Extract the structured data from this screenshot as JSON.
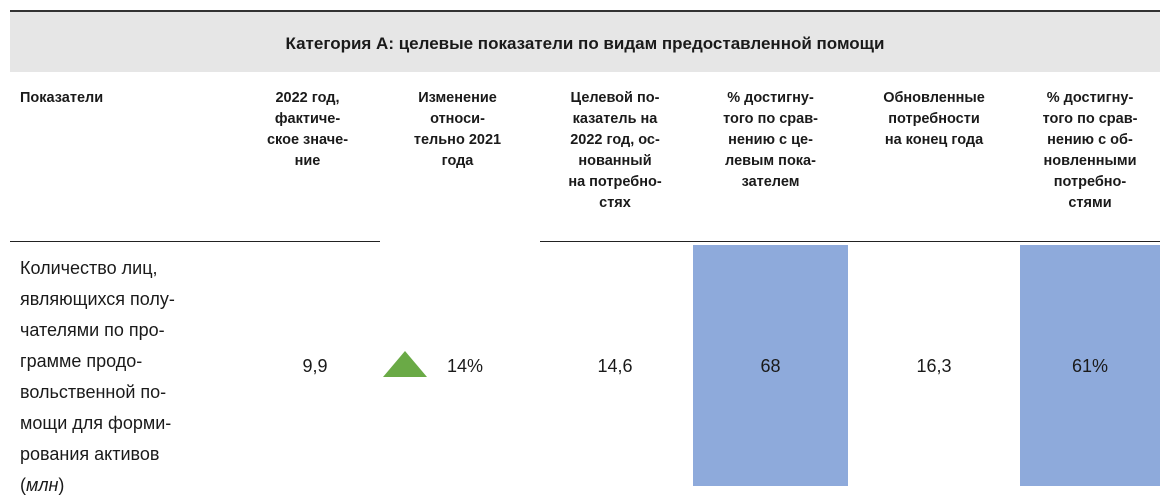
{
  "header": {
    "title": "Категория A: целевые показатели по видам предоставленной помощи"
  },
  "table": {
    "columns": [
      [
        "Показатели"
      ],
      [
        "2022 год,",
        "фактиче-",
        "ское значе-",
        "ние"
      ],
      [
        "Изменение",
        "относи-",
        "тельно 2021",
        "года"
      ],
      [
        "Целевой по-",
        "казатель на",
        "2022 год, ос-",
        "нованный",
        "на потребно-",
        "стях"
      ],
      [
        "% достигну-",
        "того по срав-",
        "нению с це-",
        "левым пока-",
        "зателем"
      ],
      [
        "Обновленные",
        "потребности",
        "на конец года"
      ],
      [
        "% достигну-",
        "того по срав-",
        "нению с об-",
        "новленными",
        "потребно-",
        "стями"
      ]
    ],
    "rows": [
      {
        "label": [
          "Количество лиц,",
          "являющихся полу-",
          "чателями по про-",
          "грамме продо-",
          "вольственной по-",
          "мощи для форми-",
          "рования активов"
        ],
        "unit": {
          "open": "(",
          "text": "млн",
          "close": ")"
        },
        "cells": [
          "9,9",
          "14%",
          "14,6",
          "68",
          "16,3",
          "61%"
        ]
      }
    ]
  }
}
